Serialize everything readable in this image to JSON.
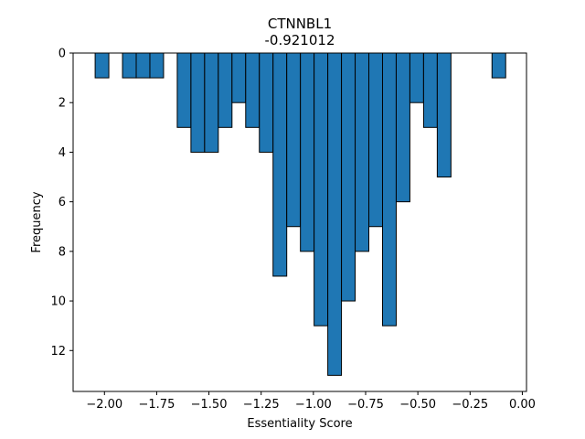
{
  "chart_data": {
    "type": "bar",
    "title": "CTNNBL1",
    "subtitle": "-0.921012",
    "xlabel": "Essentiality Score",
    "ylabel": "Frequency",
    "xlim": [
      -2.15,
      0.02
    ],
    "ylim": [
      0,
      13.65
    ],
    "y_inverted": true,
    "grid": false,
    "bar_color": "#1f77b4",
    "edge_color": "#000000",
    "bin_width": 0.0655,
    "x_ticks": [
      -2.0,
      -1.75,
      -1.5,
      -1.25,
      -1.0,
      -0.75,
      -0.5,
      -0.25,
      0.0
    ],
    "x_tick_labels": [
      "−2.00",
      "−1.75",
      "−1.50",
      "−1.25",
      "−1.00",
      "−0.75",
      "−0.50",
      "−0.25",
      "0.00"
    ],
    "y_ticks": [
      0,
      2,
      4,
      6,
      8,
      10,
      12
    ],
    "y_tick_labels": [
      "0",
      "2",
      "4",
      "6",
      "8",
      "10",
      "12"
    ],
    "bins": [
      {
        "x0": -2.0446,
        "count": 1
      },
      {
        "x0": -1.9791,
        "count": 0
      },
      {
        "x0": -1.9136,
        "count": 1
      },
      {
        "x0": -1.8481,
        "count": 1
      },
      {
        "x0": -1.7826,
        "count": 1
      },
      {
        "x0": -1.7171,
        "count": 0
      },
      {
        "x0": -1.6516,
        "count": 3
      },
      {
        "x0": -1.5861,
        "count": 4
      },
      {
        "x0": -1.5206,
        "count": 4
      },
      {
        "x0": -1.4551,
        "count": 3
      },
      {
        "x0": -1.3896,
        "count": 2
      },
      {
        "x0": -1.3241,
        "count": 3
      },
      {
        "x0": -1.2586,
        "count": 4
      },
      {
        "x0": -1.1931,
        "count": 9
      },
      {
        "x0": -1.1276,
        "count": 7
      },
      {
        "x0": -1.0621,
        "count": 8
      },
      {
        "x0": -0.9966,
        "count": 11
      },
      {
        "x0": -0.9311,
        "count": 13
      },
      {
        "x0": -0.8656,
        "count": 10
      },
      {
        "x0": -0.8001,
        "count": 8
      },
      {
        "x0": -0.7346,
        "count": 7
      },
      {
        "x0": -0.6691,
        "count": 11
      },
      {
        "x0": -0.6036,
        "count": 6
      },
      {
        "x0": -0.5381,
        "count": 2
      },
      {
        "x0": -0.4726,
        "count": 3
      },
      {
        "x0": -0.4071,
        "count": 5
      },
      {
        "x0": -0.3416,
        "count": 0
      },
      {
        "x0": -0.2761,
        "count": 0
      },
      {
        "x0": -0.2106,
        "count": 0
      },
      {
        "x0": -0.1451,
        "count": 1
      }
    ]
  }
}
